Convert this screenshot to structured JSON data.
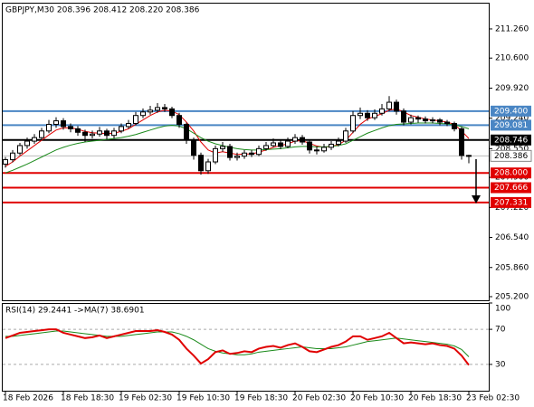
{
  "chart_data": [
    {
      "type": "candlestick",
      "title": "GBPJPY,M30  208.396 208.412 208.220 208.386",
      "categories": [
        "18 Feb 2026",
        null,
        null,
        null,
        null,
        null,
        null,
        null,
        "18 Feb 18:30",
        null,
        null,
        null,
        null,
        null,
        null,
        null,
        "19 Feb 02:30",
        null,
        null,
        null,
        null,
        null,
        null,
        null,
        "19 Feb 10:30",
        null,
        null,
        null,
        null,
        null,
        null,
        null,
        "19 Feb 18:30",
        null,
        null,
        null,
        null,
        null,
        null,
        null,
        "20 Feb 02:30",
        null,
        null,
        null,
        null,
        null,
        null,
        null,
        "20 Feb 10:30",
        null,
        null,
        null,
        null,
        null,
        null,
        null,
        "20 Feb 18:30",
        null,
        null,
        null,
        null,
        null,
        null,
        null,
        "23 Feb 02:30"
      ],
      "open": [
        208.2,
        208.3,
        208.45,
        208.62,
        208.72,
        208.8,
        208.95,
        209.1,
        209.18,
        209.05,
        209.0,
        208.92,
        208.85,
        208.88,
        208.95,
        208.85,
        208.95,
        209.05,
        209.12,
        209.3,
        209.38,
        209.42,
        209.48,
        209.45,
        209.3,
        209.1,
        208.75,
        208.4,
        208.05,
        208.25,
        208.55,
        208.6,
        208.35,
        208.38,
        208.45,
        208.42,
        208.55,
        208.62,
        208.68,
        208.6,
        208.72,
        208.8,
        208.7,
        208.52,
        208.5,
        208.58,
        208.65,
        208.72,
        208.95,
        209.3,
        209.35,
        209.25,
        209.35,
        209.45,
        209.6,
        209.4,
        209.15,
        209.25,
        209.22,
        209.18,
        209.2,
        209.15,
        209.12,
        209.0,
        208.396
      ],
      "high": [
        208.36,
        208.52,
        208.68,
        208.8,
        208.88,
        209.02,
        209.2,
        209.26,
        209.24,
        209.12,
        209.06,
        208.98,
        208.96,
        209.04,
        209.0,
        209.02,
        209.12,
        209.2,
        209.38,
        209.46,
        209.52,
        209.58,
        209.56,
        209.5,
        209.36,
        209.14,
        208.8,
        208.46,
        208.32,
        208.62,
        208.7,
        208.66,
        208.46,
        208.52,
        208.52,
        208.62,
        208.7,
        208.78,
        208.74,
        208.8,
        208.88,
        208.86,
        208.74,
        208.6,
        208.66,
        208.72,
        208.8,
        209.02,
        209.4,
        209.48,
        209.42,
        209.44,
        209.56,
        209.74,
        209.66,
        209.46,
        209.32,
        209.3,
        209.28,
        209.26,
        209.24,
        209.2,
        209.16,
        209.04,
        208.412
      ],
      "low": [
        208.12,
        208.24,
        208.4,
        208.55,
        208.66,
        208.74,
        208.9,
        209.02,
        208.98,
        208.92,
        208.84,
        208.7,
        208.78,
        208.82,
        208.76,
        208.78,
        208.9,
        209.0,
        209.08,
        209.24,
        209.32,
        209.36,
        209.38,
        209.24,
        209.02,
        208.66,
        208.3,
        207.96,
        207.98,
        208.2,
        208.48,
        208.28,
        208.28,
        208.32,
        208.36,
        208.38,
        208.5,
        208.58,
        208.54,
        208.56,
        208.66,
        208.64,
        208.44,
        208.42,
        208.46,
        208.52,
        208.6,
        208.68,
        208.9,
        209.22,
        209.18,
        209.2,
        209.3,
        209.4,
        209.32,
        209.08,
        209.1,
        209.14,
        209.12,
        209.12,
        209.08,
        209.06,
        208.94,
        208.3,
        208.22
      ],
      "close": [
        208.3,
        208.45,
        208.62,
        208.72,
        208.8,
        208.95,
        209.1,
        209.18,
        209.05,
        209.0,
        208.92,
        208.85,
        208.88,
        208.95,
        208.85,
        208.95,
        209.05,
        209.12,
        209.3,
        209.38,
        209.42,
        209.48,
        209.45,
        209.3,
        209.1,
        208.75,
        208.4,
        208.05,
        208.25,
        208.55,
        208.6,
        208.35,
        208.38,
        208.45,
        208.42,
        208.55,
        208.62,
        208.68,
        208.6,
        208.72,
        208.8,
        208.7,
        208.52,
        208.5,
        208.58,
        208.65,
        208.72,
        208.95,
        209.3,
        209.35,
        209.25,
        209.35,
        209.45,
        209.6,
        209.4,
        209.15,
        209.25,
        209.22,
        209.18,
        209.2,
        209.15,
        209.12,
        209.0,
        208.396,
        208.386
      ],
      "moving_averages": [
        {
          "color": "#e00000",
          "values": [
            208.15,
            208.25,
            208.38,
            208.5,
            208.62,
            208.74,
            208.86,
            208.97,
            209.02,
            209.02,
            208.99,
            208.94,
            208.91,
            208.9,
            208.89,
            208.9,
            208.94,
            209.0,
            209.1,
            209.2,
            209.3,
            209.38,
            209.42,
            209.4,
            209.32,
            209.15,
            208.95,
            208.7,
            208.52,
            208.45,
            208.48,
            208.45,
            208.42,
            208.43,
            208.43,
            208.47,
            208.52,
            208.58,
            208.62,
            208.66,
            208.72,
            208.73,
            208.67,
            208.61,
            208.58,
            208.6,
            208.64,
            208.74,
            208.92,
            209.1,
            209.22,
            209.28,
            209.34,
            209.42,
            209.45,
            209.38,
            209.3,
            209.26,
            209.22,
            209.2,
            209.18,
            209.15,
            209.1,
            208.95,
            208.78
          ]
        },
        {
          "color": "#1a8a1a",
          "values": [
            208.0,
            208.06,
            208.13,
            208.2,
            208.28,
            208.36,
            208.44,
            208.52,
            208.58,
            208.63,
            208.67,
            208.7,
            208.72,
            208.74,
            208.76,
            208.78,
            208.8,
            208.83,
            208.87,
            208.92,
            208.97,
            209.02,
            209.06,
            209.08,
            209.06,
            209.0,
            208.9,
            208.8,
            208.72,
            208.66,
            208.62,
            208.58,
            208.55,
            208.53,
            208.52,
            208.52,
            208.53,
            208.54,
            208.55,
            208.57,
            208.59,
            208.6,
            208.6,
            208.59,
            208.59,
            208.6,
            208.62,
            208.66,
            208.74,
            208.82,
            208.9,
            208.96,
            209.02,
            209.07,
            209.1,
            209.11,
            209.12,
            209.13,
            209.13,
            209.13,
            209.12,
            209.11,
            209.09,
            209.05,
            209.0
          ]
        }
      ],
      "levels": [
        {
          "value": 209.4,
          "label": "209.400",
          "color": "#4a86c4"
        },
        {
          "value": 209.081,
          "label": "209.081",
          "color": "#4a86c4"
        },
        {
          "value": 208.746,
          "label": "208.746",
          "color": "#000000"
        },
        {
          "value": 208.0,
          "label": "208.000",
          "color": "#e00000"
        },
        {
          "value": 207.666,
          "label": "207.666",
          "color": "#e00000"
        },
        {
          "value": 207.331,
          "label": "207.331",
          "color": "#e00000"
        }
      ],
      "current_price": {
        "value": 208.386,
        "label": "208.386"
      },
      "ylim": [
        205.118,
        211.853
      ],
      "yticks": [
        {
          "value": 211.26,
          "label": "211.260"
        },
        {
          "value": 210.6,
          "label": "210.600"
        },
        {
          "value": 209.92,
          "label": "209.920"
        },
        {
          "value": 209.24,
          "label": "209.240"
        },
        {
          "value": 208.55,
          "label": "208.550"
        },
        {
          "value": 207.9,
          "label": "207.900"
        },
        {
          "value": 207.22,
          "label": "207.220"
        },
        {
          "value": 206.54,
          "label": "206.540"
        },
        {
          "value": 205.86,
          "label": "205.860"
        },
        {
          "value": 205.2,
          "label": "205.200"
        }
      ]
    },
    {
      "type": "line",
      "title": "RSI(14) 29.2441  ->MA(7) 38.6901",
      "series": [
        {
          "color": "#e00000",
          "values": [
            60,
            63,
            66,
            67,
            68,
            69,
            70,
            70,
            66,
            64,
            62,
            60,
            61,
            63,
            60,
            62,
            64,
            66,
            68,
            68,
            68,
            69,
            67,
            64,
            58,
            48,
            40,
            31,
            36,
            44,
            46,
            42,
            43,
            45,
            44,
            48,
            50,
            51,
            49,
            52,
            54,
            50,
            45,
            44,
            47,
            50,
            52,
            56,
            62,
            62,
            58,
            60,
            62,
            66,
            60,
            54,
            55,
            54,
            53,
            54,
            52,
            51,
            48,
            40,
            29.2441
          ]
        },
        {
          "color": "#1a8a1a",
          "values": [
            62,
            62,
            63,
            64,
            65,
            66,
            67,
            68,
            68,
            67,
            66,
            65,
            64,
            63,
            62,
            62,
            62,
            63,
            64,
            65,
            66,
            67,
            67,
            67,
            65,
            62,
            58,
            53,
            48,
            45,
            43,
            42,
            41,
            41,
            42,
            44,
            45,
            46,
            47,
            48,
            49,
            50,
            49,
            48,
            48,
            48,
            49,
            50,
            52,
            54,
            56,
            57,
            58,
            59,
            60,
            59,
            58,
            57,
            56,
            55,
            54,
            53,
            51,
            47,
            38.6901
          ]
        }
      ],
      "ylim": [
        0,
        100
      ],
      "yticks": [
        100,
        70,
        30
      ]
    }
  ]
}
